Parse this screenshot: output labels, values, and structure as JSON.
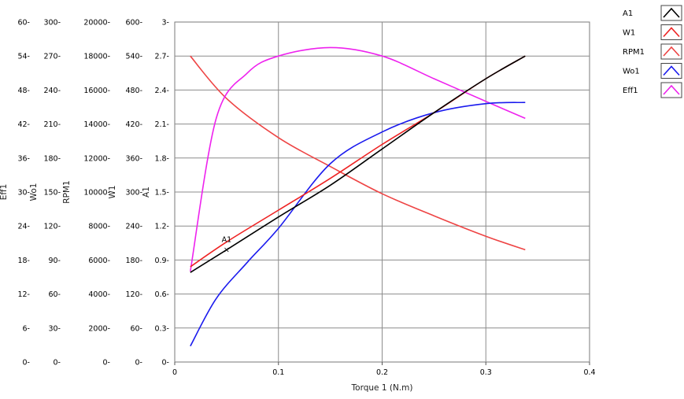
{
  "chart_data": {
    "type": "line",
    "title": "",
    "xlabel": "Torque 1 (N.m)",
    "x_ticks": [
      "0",
      "0.1",
      "0.2",
      "0.3",
      "0.4"
    ],
    "xlim": [
      0,
      0.4
    ],
    "grid": true,
    "legend_position": "right",
    "y_axes": [
      {
        "name": "Eff1",
        "range": [
          0,
          60
        ],
        "ticks": [
          "0",
          "6",
          "12",
          "18",
          "24",
          "30",
          "36",
          "42",
          "48",
          "54",
          "60"
        ]
      },
      {
        "name": "Wo1",
        "range": [
          0,
          300
        ],
        "ticks": [
          "0",
          "30",
          "60",
          "90",
          "120",
          "150",
          "180",
          "210",
          "240",
          "270",
          "300"
        ]
      },
      {
        "name": "RPM1",
        "range": [
          0,
          20000
        ],
        "ticks": [
          "0",
          "2000",
          "4000",
          "6000",
          "8000",
          "10000",
          "12000",
          "14000",
          "16000",
          "18000",
          "20000"
        ]
      },
      {
        "name": "W1",
        "range": [
          0,
          600
        ],
        "ticks": [
          "0",
          "60",
          "120",
          "180",
          "240",
          "300",
          "360",
          "420",
          "480",
          "540",
          "600"
        ]
      },
      {
        "name": "A1",
        "range": [
          0,
          3
        ],
        "ticks": [
          "0",
          "0.3",
          "0.6",
          "0.9",
          "1.2",
          "1.5",
          "1.8",
          "2.1",
          "2.4",
          "2.7",
          "3"
        ]
      }
    ],
    "series": [
      {
        "name": "A1",
        "axis": "A1",
        "color": "#000000",
        "x": [
          0.015,
          0.05,
          0.1,
          0.15,
          0.2,
          0.25,
          0.3,
          0.338
        ],
        "y": [
          0.79,
          0.99,
          1.28,
          1.56,
          1.88,
          2.2,
          2.5,
          2.7
        ]
      },
      {
        "name": "W1",
        "axis": "W1",
        "color": "#ee2222",
        "x": [
          0.015,
          0.05,
          0.1,
          0.15,
          0.2,
          0.25,
          0.3,
          0.338
        ],
        "y": [
          168,
          212,
          268,
          324,
          384,
          440,
          500,
          540
        ]
      },
      {
        "name": "RPM1",
        "axis": "RPM1",
        "color": "#ee4444",
        "x": [
          0.015,
          0.05,
          0.1,
          0.15,
          0.2,
          0.25,
          0.3,
          0.338
        ],
        "y": [
          18000,
          15500,
          13200,
          11500,
          9900,
          8600,
          7400,
          6600
        ]
      },
      {
        "name": "Wo1",
        "axis": "Wo1",
        "color": "#1a1aee",
        "x": [
          0.015,
          0.04,
          0.07,
          0.1,
          0.15,
          0.2,
          0.25,
          0.3,
          0.338
        ],
        "y": [
          14,
          56,
          88,
          118,
          175,
          203,
          220,
          228,
          229
        ]
      },
      {
        "name": "Eff1",
        "axis": "Eff1",
        "color": "#ee22ee",
        "x": [
          0.015,
          0.04,
          0.07,
          0.1,
          0.15,
          0.2,
          0.25,
          0.3,
          0.338
        ],
        "y": [
          16,
          43,
          51,
          54,
          55.5,
          54,
          50,
          46,
          43
        ]
      }
    ],
    "annotations": [
      {
        "text": "A1",
        "x": 0.05,
        "y": 0.99,
        "axis": "A1",
        "marker": "×"
      }
    ]
  }
}
